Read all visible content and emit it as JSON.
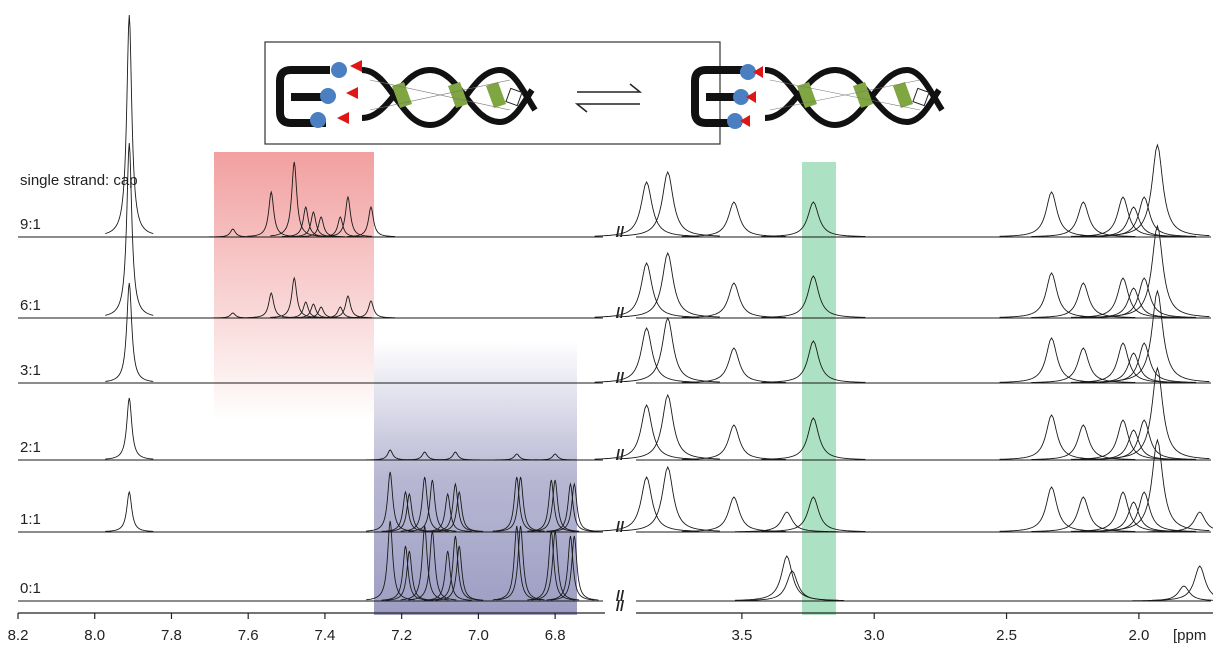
{
  "chart_data": {
    "type": "spectrum",
    "legend_title": "single strand: cap",
    "x_label": "[ppm",
    "break_label": "//",
    "panels": [
      {
        "xlim": [
          8.2,
          6.67
        ],
        "xticks": [
          8.2,
          {
            "value": 8.0,
            "label": "8.0"
          },
          7.8,
          7.6,
          7.4,
          7.2,
          {
            "value": 7.0,
            "label": "7.0"
          },
          6.8
        ]
      },
      {
        "xlim": [
          3.9,
          1.72
        ],
        "xticks": [
          3.5,
          {
            "value": 3.0,
            "label": "3.0"
          },
          2.5,
          {
            "value": 2.0,
            "label": "2.0"
          }
        ]
      }
    ],
    "series": [
      {
        "name": "9:1",
        "panels": [
          {
            "x": [
              7.91,
              7.64,
              7.54,
              7.48,
              7.45,
              7.43,
              7.41,
              7.36,
              7.34,
              7.28
            ],
            "values": [
              222,
              8,
              45,
              75,
              30,
              25,
              20,
              20,
              40,
              30
            ]
          },
          {
            "x": [
              3.86,
              3.78,
              3.53,
              3.23,
              2.33,
              2.21,
              2.06,
              2.02,
              1.98,
              1.93
            ],
            "values": [
              55,
              65,
              35,
              35,
              45,
              35,
              40,
              30,
              40,
              92
            ]
          }
        ]
      },
      {
        "name": "6:1",
        "panels": [
          {
            "x": [
              7.91,
              7.64,
              7.54,
              7.48,
              7.45,
              7.43,
              7.41,
              7.36,
              7.34,
              7.28
            ],
            "values": [
              175,
              5,
              25,
              40,
              16,
              14,
              11,
              11,
              22,
              17
            ]
          },
          {
            "x": [
              3.86,
              3.78,
              3.53,
              3.23,
              2.33,
              2.21,
              2.06,
              2.02,
              1.98,
              1.93
            ],
            "values": [
              55,
              65,
              35,
              42,
              45,
              35,
              40,
              30,
              40,
              92
            ]
          }
        ]
      },
      {
        "name": "3:1",
        "panels": [
          {
            "x": [
              7.91
            ],
            "values": [
              100
            ]
          },
          {
            "x": [
              3.86,
              3.78,
              3.53,
              3.23,
              2.33,
              2.21,
              2.06,
              2.02,
              1.98,
              1.93
            ],
            "values": [
              55,
              65,
              35,
              42,
              45,
              35,
              40,
              30,
              40,
              92
            ]
          }
        ]
      },
      {
        "name": "2:1",
        "panels": [
          {
            "x": [
              7.91,
              7.23,
              7.14,
              7.06,
              6.9,
              6.8
            ],
            "values": [
              62,
              10,
              8,
              8,
              6,
              6
            ]
          },
          {
            "x": [
              3.86,
              3.78,
              3.53,
              3.23,
              2.33,
              2.21,
              2.06,
              2.02,
              1.98,
              1.93
            ],
            "values": [
              55,
              65,
              35,
              42,
              45,
              35,
              40,
              30,
              40,
              92
            ]
          }
        ]
      },
      {
        "name": "1:1",
        "panels": [
          {
            "x": [
              7.91,
              7.23,
              7.19,
              7.18,
              7.14,
              7.12,
              7.08,
              7.06,
              7.05,
              6.9,
              6.89,
              6.81,
              6.8,
              6.76,
              6.75
            ],
            "values": [
              40,
              60,
              40,
              38,
              55,
              52,
              38,
              48,
              40,
              55,
              55,
              52,
              52,
              48,
              48
            ]
          },
          {
            "x": [
              3.86,
              3.78,
              3.53,
              3.33,
              3.23,
              2.33,
              2.21,
              2.06,
              2.02,
              1.98,
              1.93,
              1.77
            ],
            "values": [
              55,
              65,
              35,
              20,
              35,
              45,
              35,
              40,
              30,
              40,
              92,
              20
            ]
          }
        ]
      },
      {
        "name": "0:1",
        "panels": [
          {
            "x": [
              7.23,
              7.19,
              7.18,
              7.14,
              7.12,
              7.08,
              7.06,
              7.05,
              6.9,
              6.89,
              6.81,
              6.8,
              6.76,
              6.75
            ],
            "values": [
              80,
              55,
              50,
              75,
              70,
              50,
              65,
              55,
              75,
              75,
              70,
              70,
              65,
              65
            ]
          },
          {
            "x": [
              3.33,
              3.31,
              1.83,
              1.77
            ],
            "values": [
              45,
              30,
              15,
              35
            ]
          }
        ]
      }
    ]
  }
}
